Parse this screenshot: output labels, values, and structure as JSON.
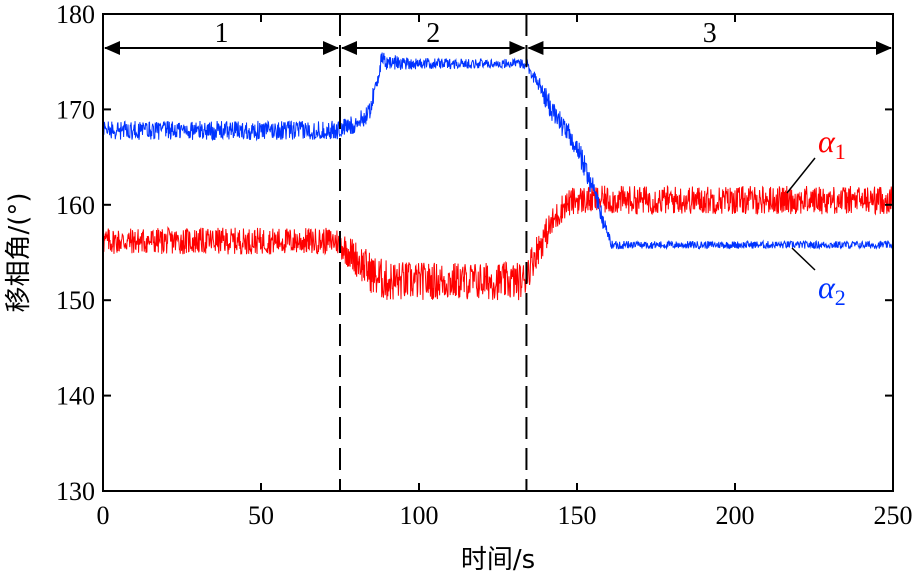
{
  "chart_data": {
    "type": "line",
    "title": "",
    "xlabel": "时间/s",
    "ylabel": "移相角/(°)",
    "xlim": [
      0,
      250
    ],
    "ylim": [
      130,
      180
    ],
    "xticks": [
      0,
      50,
      100,
      150,
      200,
      250
    ],
    "yticks": [
      130,
      140,
      150,
      160,
      170,
      180
    ],
    "grid": false,
    "regions": [
      {
        "label": "1",
        "x_start": 0,
        "x_end": 75
      },
      {
        "label": "2",
        "x_start": 75,
        "x_end": 134
      },
      {
        "label": "3",
        "x_start": 134,
        "x_end": 250
      }
    ],
    "series": [
      {
        "name": "α1",
        "name_base": "α",
        "name_sub": "1",
        "color": "#ff0000",
        "x": [
          0,
          74,
          78,
          82,
          86,
          90,
          100,
          110,
          120,
          130,
          133,
          137,
          142,
          146,
          150,
          155,
          160,
          170,
          200,
          250
        ],
        "y": [
          156.2,
          156.2,
          155.0,
          153.8,
          152.5,
          152.0,
          152.0,
          152.0,
          152.0,
          152.0,
          152.0,
          155.0,
          158.0,
          160.0,
          160.5,
          160.5,
          160.5,
          160.5,
          160.5,
          160.5
        ],
        "noise_amplitude": [
          1.4,
          1.4,
          1.8,
          2.0,
          2.2,
          2.2,
          2.0,
          2.0,
          2.0,
          2.0,
          2.0,
          1.8,
          1.6,
          1.5,
          1.5,
          1.5,
          1.5,
          1.5,
          1.5,
          1.5
        ]
      },
      {
        "name": "α2",
        "name_base": "α",
        "name_sub": "2",
        "color": "#0033ff",
        "x": [
          0,
          74,
          80,
          84,
          86,
          88,
          100,
          120,
          134,
          138,
          142,
          146,
          150,
          153,
          156,
          158,
          161,
          170,
          200,
          250
        ],
        "y": [
          167.8,
          167.8,
          168.5,
          169.5,
          172.0,
          175.0,
          174.8,
          174.8,
          174.8,
          172.5,
          170.0,
          168.0,
          166.0,
          163.5,
          161.0,
          158.5,
          155.8,
          155.8,
          155.8,
          155.8
        ],
        "noise_amplitude": [
          1.0,
          1.0,
          1.0,
          1.0,
          1.0,
          1.0,
          0.6,
          0.5,
          0.5,
          1.0,
          1.2,
          1.2,
          1.2,
          1.2,
          1.2,
          1.0,
          0.5,
          0.4,
          0.4,
          0.4
        ]
      }
    ]
  }
}
